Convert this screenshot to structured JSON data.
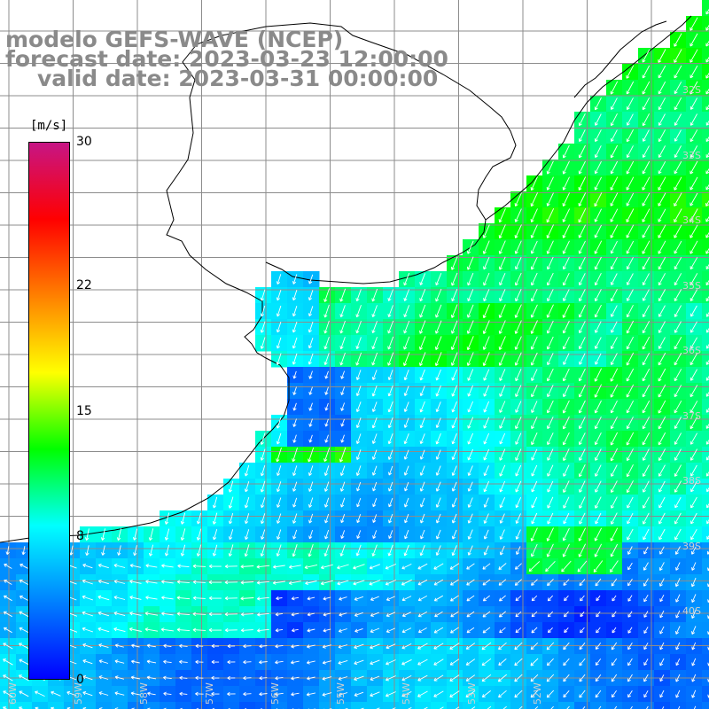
{
  "title": {
    "line1": "modelo GEFS-WAVE (NCEP)",
    "line2": "forecast date: 2023-03-23 12:00:00",
    "line3": "valid date: 2023-03-31 00:00:00"
  },
  "colorbar": {
    "unit": "[m/s]",
    "ticks": [
      {
        "label": "30",
        "value": 30
      },
      {
        "label": "22",
        "value": 22
      },
      {
        "label": "15",
        "value": 15
      },
      {
        "label": "8",
        "value": 8
      },
      {
        "label": "0",
        "value": 0
      }
    ],
    "colors": [
      "#0000ff",
      "#0080ff",
      "#00ffff",
      "#00ff00",
      "#ffff00",
      "#ff8000",
      "#ff0000",
      "#c71585"
    ]
  },
  "grid": {
    "lat_labels": [
      "32S",
      "33S",
      "34S",
      "35S",
      "36S",
      "37S",
      "38S",
      "39S",
      "40S"
    ],
    "lon_labels": [
      "60W",
      "59W",
      "58W",
      "57W",
      "56W",
      "55W",
      "54W",
      "53W",
      "52W"
    ]
  },
  "colors": {
    "land": "#ffffff",
    "grid": "#8c8c8c",
    "coast": "#000000",
    "arrow": "#ffffff",
    "title": "#8a8a8a"
  }
}
